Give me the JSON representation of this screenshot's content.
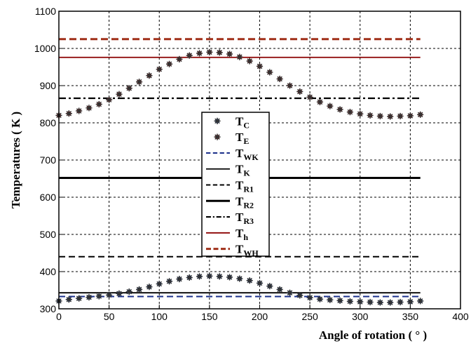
{
  "chart_data": {
    "type": "line",
    "title": "",
    "xlabel": "Angle of rotation ( ° )",
    "ylabel": "Temperatures ( K )",
    "xlim": [
      0,
      400
    ],
    "ylim": [
      300,
      1100
    ],
    "xticks": [
      0,
      50,
      100,
      150,
      200,
      250,
      300,
      350,
      400
    ],
    "yticks": [
      300,
      400,
      500,
      600,
      700,
      800,
      900,
      1000,
      1100
    ],
    "grid": true,
    "legend_position": "center",
    "x": [
      0,
      10,
      20,
      30,
      40,
      50,
      60,
      70,
      80,
      90,
      100,
      110,
      120,
      130,
      140,
      150,
      160,
      170,
      180,
      190,
      200,
      210,
      220,
      230,
      240,
      250,
      260,
      270,
      280,
      290,
      300,
      310,
      320,
      330,
      340,
      350,
      360
    ],
    "series": [
      {
        "name": "T",
        "sub": "C",
        "kind": "marker",
        "color": "#1a3a7a",
        "markerColor": "#555555",
        "values": [
          321,
          325,
          328,
          331,
          334,
          337,
          341,
          346,
          352,
          359,
          367,
          374,
          380,
          384,
          387,
          388,
          387,
          385,
          381,
          376,
          369,
          361,
          352,
          343,
          336,
          330,
          326,
          324,
          322,
          320,
          319,
          318,
          317,
          317,
          318,
          319,
          321
        ]
      },
      {
        "name": "T",
        "sub": "E",
        "kind": "marker",
        "color": "#8b1a1a",
        "markerColor": "#555555",
        "values": [
          820,
          825,
          832,
          840,
          850,
          862,
          877,
          893,
          910,
          927,
          944,
          958,
          971,
          981,
          987,
          990,
          989,
          985,
          977,
          966,
          952,
          936,
          918,
          900,
          884,
          869,
          856,
          845,
          836,
          829,
          824,
          820,
          818,
          817,
          818,
          819,
          822
        ]
      },
      {
        "name": "T",
        "sub": "WK",
        "kind": "hline",
        "style": "dashed",
        "color": "#1a2f8a",
        "value": 333
      },
      {
        "name": "T",
        "sub": "K",
        "kind": "hline",
        "style": "solid",
        "color": "#000000",
        "value": 343
      },
      {
        "name": "T",
        "sub": "R1",
        "kind": "hline",
        "style": "dashed",
        "color": "#000000",
        "value": 440
      },
      {
        "name": "T",
        "sub": "R2",
        "kind": "hline",
        "style": "solid-thick",
        "color": "#000000",
        "value": 652
      },
      {
        "name": "T",
        "sub": "R3",
        "kind": "hline",
        "style": "dashdot",
        "color": "#000000",
        "value": 866
      },
      {
        "name": "T",
        "sub": "h",
        "kind": "hline",
        "style": "solid",
        "color": "#8b0000",
        "value": 976
      },
      {
        "name": "T",
        "sub": "WH",
        "kind": "hline",
        "style": "dashed-thick",
        "color": "#a0301a",
        "value": 1025
      }
    ]
  }
}
